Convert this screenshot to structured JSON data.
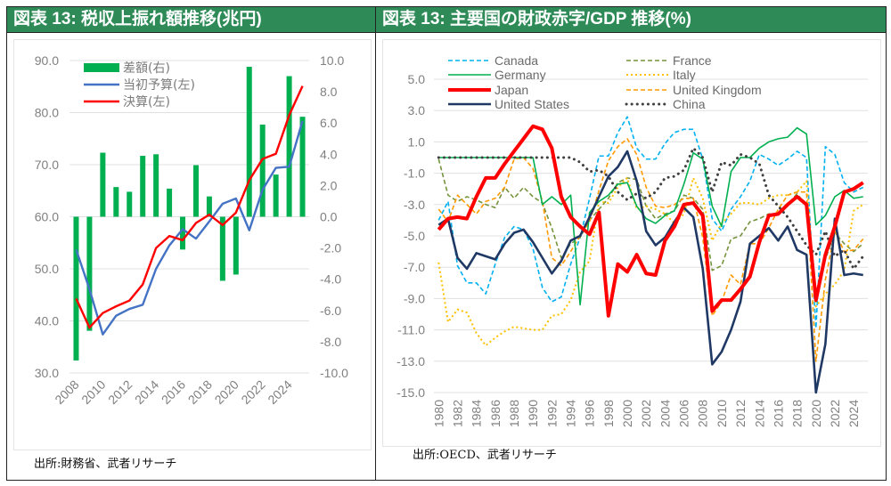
{
  "panels": {
    "left": {
      "title": "図表 13: 税収上振れ額推移(兆円)",
      "source": "出所:財務省、武者リサーチ"
    },
    "right": {
      "title": "図表 13: 主要国の財政赤字/GDP 推移(%)",
      "source": "出所:OECD、武者リサーチ"
    }
  },
  "colors": {
    "header": "#2e8b57",
    "grid": "#e0e0e0"
  },
  "chart_data": [
    {
      "type": "bar+line",
      "title": "図表 13: 税収上振れ額推移(兆円)",
      "x": [
        2008,
        2009,
        2010,
        2011,
        2012,
        2013,
        2014,
        2015,
        2016,
        2017,
        2018,
        2019,
        2020,
        2021,
        2022,
        2023,
        2024,
        2025
      ],
      "x_tick_labels": [
        "2008",
        "2010",
        "2012",
        "2014",
        "2016",
        "2018",
        "2020",
        "2022",
        "2024"
      ],
      "y_left": {
        "range": [
          30,
          90
        ],
        "ticks": [
          "30.0",
          "40.0",
          "50.0",
          "60.0",
          "70.0",
          "80.0",
          "90.0"
        ]
      },
      "y_right": {
        "range": [
          -10,
          10
        ],
        "ticks": [
          "-10.0",
          "-8.0",
          "-6.0",
          "-4.0",
          "-2.0",
          "0.0",
          "2.0",
          "4.0",
          "6.0",
          "8.0",
          "10.0"
        ]
      },
      "grid": true,
      "legend_position": "top-left",
      "series": [
        {
          "name": "差額(右)",
          "type": "bar",
          "axis": "right",
          "color": "#00b050",
          "values": [
            -9.2,
            -7.3,
            4.1,
            1.9,
            1.6,
            3.9,
            4.0,
            1.8,
            -2.1,
            3.3,
            1.3,
            -4.1,
            -3.7,
            9.6,
            5.9,
            2.7,
            9.0,
            6.4
          ]
        },
        {
          "name": "当初予算(左)",
          "type": "line",
          "axis": "left",
          "color": "#4472c4",
          "values": [
            53.7,
            46.1,
            37.4,
            41.0,
            42.3,
            43.1,
            50.0,
            54.5,
            57.6,
            55.8,
            59.1,
            62.5,
            63.5,
            57.4,
            65.2,
            69.4,
            69.6,
            78.4
          ]
        },
        {
          "name": "決算(左)",
          "type": "line",
          "axis": "left",
          "color": "#ff0000",
          "values": [
            44.3,
            38.7,
            41.5,
            42.8,
            43.9,
            47.0,
            54.0,
            56.3,
            55.5,
            58.8,
            60.4,
            58.4,
            60.8,
            67.0,
            71.1,
            72.1,
            79.5,
            85.1
          ]
        }
      ]
    },
    {
      "type": "line",
      "title": "図表 13: 主要国の財政赤字/GDP 推移(%)",
      "x": [
        1980,
        1981,
        1982,
        1983,
        1984,
        1985,
        1986,
        1987,
        1988,
        1989,
        1990,
        1991,
        1992,
        1993,
        1994,
        1995,
        1996,
        1997,
        1998,
        1999,
        2000,
        2001,
        2002,
        2003,
        2004,
        2005,
        2006,
        2007,
        2008,
        2009,
        2010,
        2011,
        2012,
        2013,
        2014,
        2015,
        2016,
        2017,
        2018,
        2019,
        2020,
        2021,
        2022,
        2023,
        2024,
        2025
      ],
      "x_tick_labels": [
        "1980",
        "1982",
        "1984",
        "1986",
        "1988",
        "1990",
        "1992",
        "1994",
        "1996",
        "1998",
        "2000",
        "2002",
        "2004",
        "2006",
        "2008",
        "2010",
        "2012",
        "2014",
        "2016",
        "2018",
        "2020",
        "2022",
        "2024"
      ],
      "y": {
        "range": [
          -15,
          5
        ],
        "ticks": [
          "-15.0",
          "-13.0",
          "-11.0",
          "-9.0",
          "-7.0",
          "-5.0",
          "-3.0",
          "-1.0",
          "1.0",
          "3.0",
          "5.0"
        ]
      },
      "grid": true,
      "legend_position": "top",
      "series": [
        {
          "name": "Canada",
          "color": "#00b0f0",
          "style": "dashed",
          "width": 1.6,
          "values": [
            -4.0,
            -2.8,
            -6.9,
            -8.0,
            -8.0,
            -8.7,
            -6.8,
            -5.1,
            -4.4,
            -4.6,
            -5.8,
            -8.3,
            -9.2,
            -8.9,
            -6.8,
            -5.1,
            -2.6,
            0.1,
            0.1,
            1.6,
            2.6,
            0.6,
            -0.1,
            -0.1,
            0.9,
            1.6,
            1.8,
            1.8,
            -0.1,
            -3.9,
            -4.7,
            -3.3,
            -2.5,
            -1.5,
            0.2,
            -0.1,
            -0.5,
            -0.1,
            0.4,
            0.0,
            -10.9,
            0.7,
            0.2,
            -1.6,
            -2.2,
            -1.9
          ]
        },
        {
          "name": "France",
          "color": "#76933c",
          "style": "dashed",
          "width": 1.6,
          "values": [
            -0.1,
            -2.4,
            -2.8,
            -2.5,
            -2.7,
            -3.0,
            -3.2,
            -1.9,
            -2.6,
            -1.9,
            -2.5,
            -2.9,
            -4.5,
            -6.4,
            -5.5,
            -5.1,
            -4.0,
            -3.3,
            -2.6,
            -1.6,
            -1.3,
            -1.4,
            -3.1,
            -3.9,
            -3.6,
            -3.4,
            -2.4,
            -2.6,
            -3.3,
            -7.2,
            -6.9,
            -5.2,
            -5.0,
            -4.1,
            -3.9,
            -3.6,
            -3.6,
            -3.0,
            -2.3,
            -3.1,
            -9.0,
            -6.5,
            -4.8,
            -5.5,
            -6.0,
            -5.5
          ]
        },
        {
          "name": "Germany",
          "color": "#00b050",
          "style": "solid",
          "width": 1.6,
          "values": [
            0.0,
            0.0,
            0.0,
            0.0,
            0.0,
            0.0,
            0.0,
            0.0,
            0.0,
            0.0,
            0.0,
            -3.0,
            -2.5,
            -3.0,
            -2.4,
            -9.4,
            -3.5,
            -2.8,
            -2.4,
            -1.7,
            -1.6,
            -3.1,
            -3.9,
            -4.2,
            -3.7,
            -3.4,
            -1.7,
            0.3,
            -0.1,
            -3.1,
            -4.4,
            -0.9,
            0.0,
            0.0,
            0.6,
            1.0,
            1.2,
            1.3,
            1.9,
            1.5,
            -4.3,
            -3.7,
            -2.5,
            -2.1,
            -2.6,
            -2.5
          ]
        },
        {
          "name": "Italy",
          "color": "#ffc000",
          "style": "dotted",
          "width": 2.0,
          "values": [
            -6.7,
            -10.5,
            -9.7,
            -9.9,
            -11.2,
            -12.0,
            -11.5,
            -11.1,
            -10.8,
            -10.9,
            -11.0,
            -11.0,
            -10.1,
            -10.0,
            -9.1,
            -7.3,
            -6.6,
            -2.8,
            -2.9,
            -1.9,
            -1.3,
            -3.3,
            -3.1,
            -3.3,
            -3.6,
            -4.2,
            -3.6,
            -1.3,
            -2.6,
            -5.3,
            -4.2,
            -3.6,
            -2.9,
            -2.9,
            -3.0,
            -2.6,
            -2.4,
            -2.4,
            -2.2,
            -1.5,
            -9.5,
            -8.7,
            -8.1,
            -7.2,
            -3.4,
            -3.0
          ]
        },
        {
          "name": "Japan",
          "color": "#ff0000",
          "style": "solid",
          "width": 4.0,
          "values": [
            -4.6,
            -3.9,
            -3.8,
            -3.9,
            -2.5,
            -1.3,
            -1.3,
            -0.4,
            0.4,
            1.2,
            2.0,
            1.8,
            0.6,
            -2.5,
            -3.8,
            -4.4,
            -4.9,
            -3.5,
            -10.1,
            -6.8,
            -7.3,
            -6.2,
            -7.4,
            -7.5,
            -5.3,
            -4.4,
            -3.0,
            -2.9,
            -3.7,
            -9.8,
            -9.1,
            -9.1,
            -8.4,
            -7.6,
            -5.4,
            -3.7,
            -3.6,
            -3.0,
            -2.5,
            -3.0,
            -9.1,
            -6.2,
            -4.4,
            -2.2,
            -2.0,
            -1.6
          ]
        },
        {
          "name": "United Kingdom",
          "color": "#ff9900",
          "style": "dashed",
          "width": 1.6,
          "values": [
            -3.3,
            -4.1,
            -2.4,
            -3.0,
            -3.6,
            -2.8,
            -2.6,
            -1.9,
            -0.1,
            0.0,
            -0.7,
            -2.8,
            -6.4,
            -6.9,
            -6.0,
            -5.0,
            -4.1,
            -2.1,
            -0.2,
            0.7,
            1.2,
            0.2,
            -1.9,
            -3.1,
            -3.2,
            -3.0,
            -2.6,
            -2.6,
            -5.1,
            -10.1,
            -9.2,
            -7.5,
            -8.1,
            -5.5,
            -5.5,
            -4.5,
            -3.3,
            -2.4,
            -2.2,
            -2.2,
            -13.0,
            -7.8,
            -4.7,
            -6.0,
            -5.9,
            -5.2
          ]
        },
        {
          "name": "United States",
          "color": "#1f3864",
          "style": "solid",
          "width": 2.6,
          "values": [
            -4.3,
            -3.9,
            -6.4,
            -7.1,
            -6.1,
            -6.3,
            -6.5,
            -5.5,
            -4.8,
            -4.6,
            -5.4,
            -6.4,
            -7.4,
            -6.6,
            -5.3,
            -5.0,
            -3.8,
            -2.5,
            -1.2,
            -0.6,
            0.4,
            -1.5,
            -4.7,
            -5.6,
            -5.1,
            -4.1,
            -3.2,
            -3.8,
            -7.1,
            -13.2,
            -12.4,
            -11.0,
            -9.2,
            -5.5,
            -5.0,
            -4.5,
            -5.3,
            -4.4,
            -5.9,
            -6.2,
            -15.0,
            -11.9,
            -3.9,
            -7.5,
            -7.4,
            -7.5
          ]
        },
        {
          "name": "China",
          "color": "#404040",
          "style": "round-dotted",
          "width": 3.0,
          "values": [
            0.0,
            0.0,
            0.0,
            0.0,
            0.0,
            0.0,
            0.0,
            0.0,
            0.0,
            0.0,
            0.0,
            0.0,
            0.0,
            0.0,
            0.0,
            -0.3,
            -0.9,
            -0.8,
            -1.2,
            -2.2,
            -2.7,
            -2.3,
            -2.6,
            -2.2,
            -1.3,
            -1.2,
            -0.8,
            0.6,
            0.0,
            -2.2,
            -0.3,
            -0.5,
            0.2,
            0.0,
            -0.4,
            -2.4,
            -3.1,
            -3.8,
            -4.7,
            -5.6,
            -6.2,
            -4.7,
            -6.3,
            -5.9,
            -7.1,
            -6.3
          ]
        }
      ]
    }
  ]
}
